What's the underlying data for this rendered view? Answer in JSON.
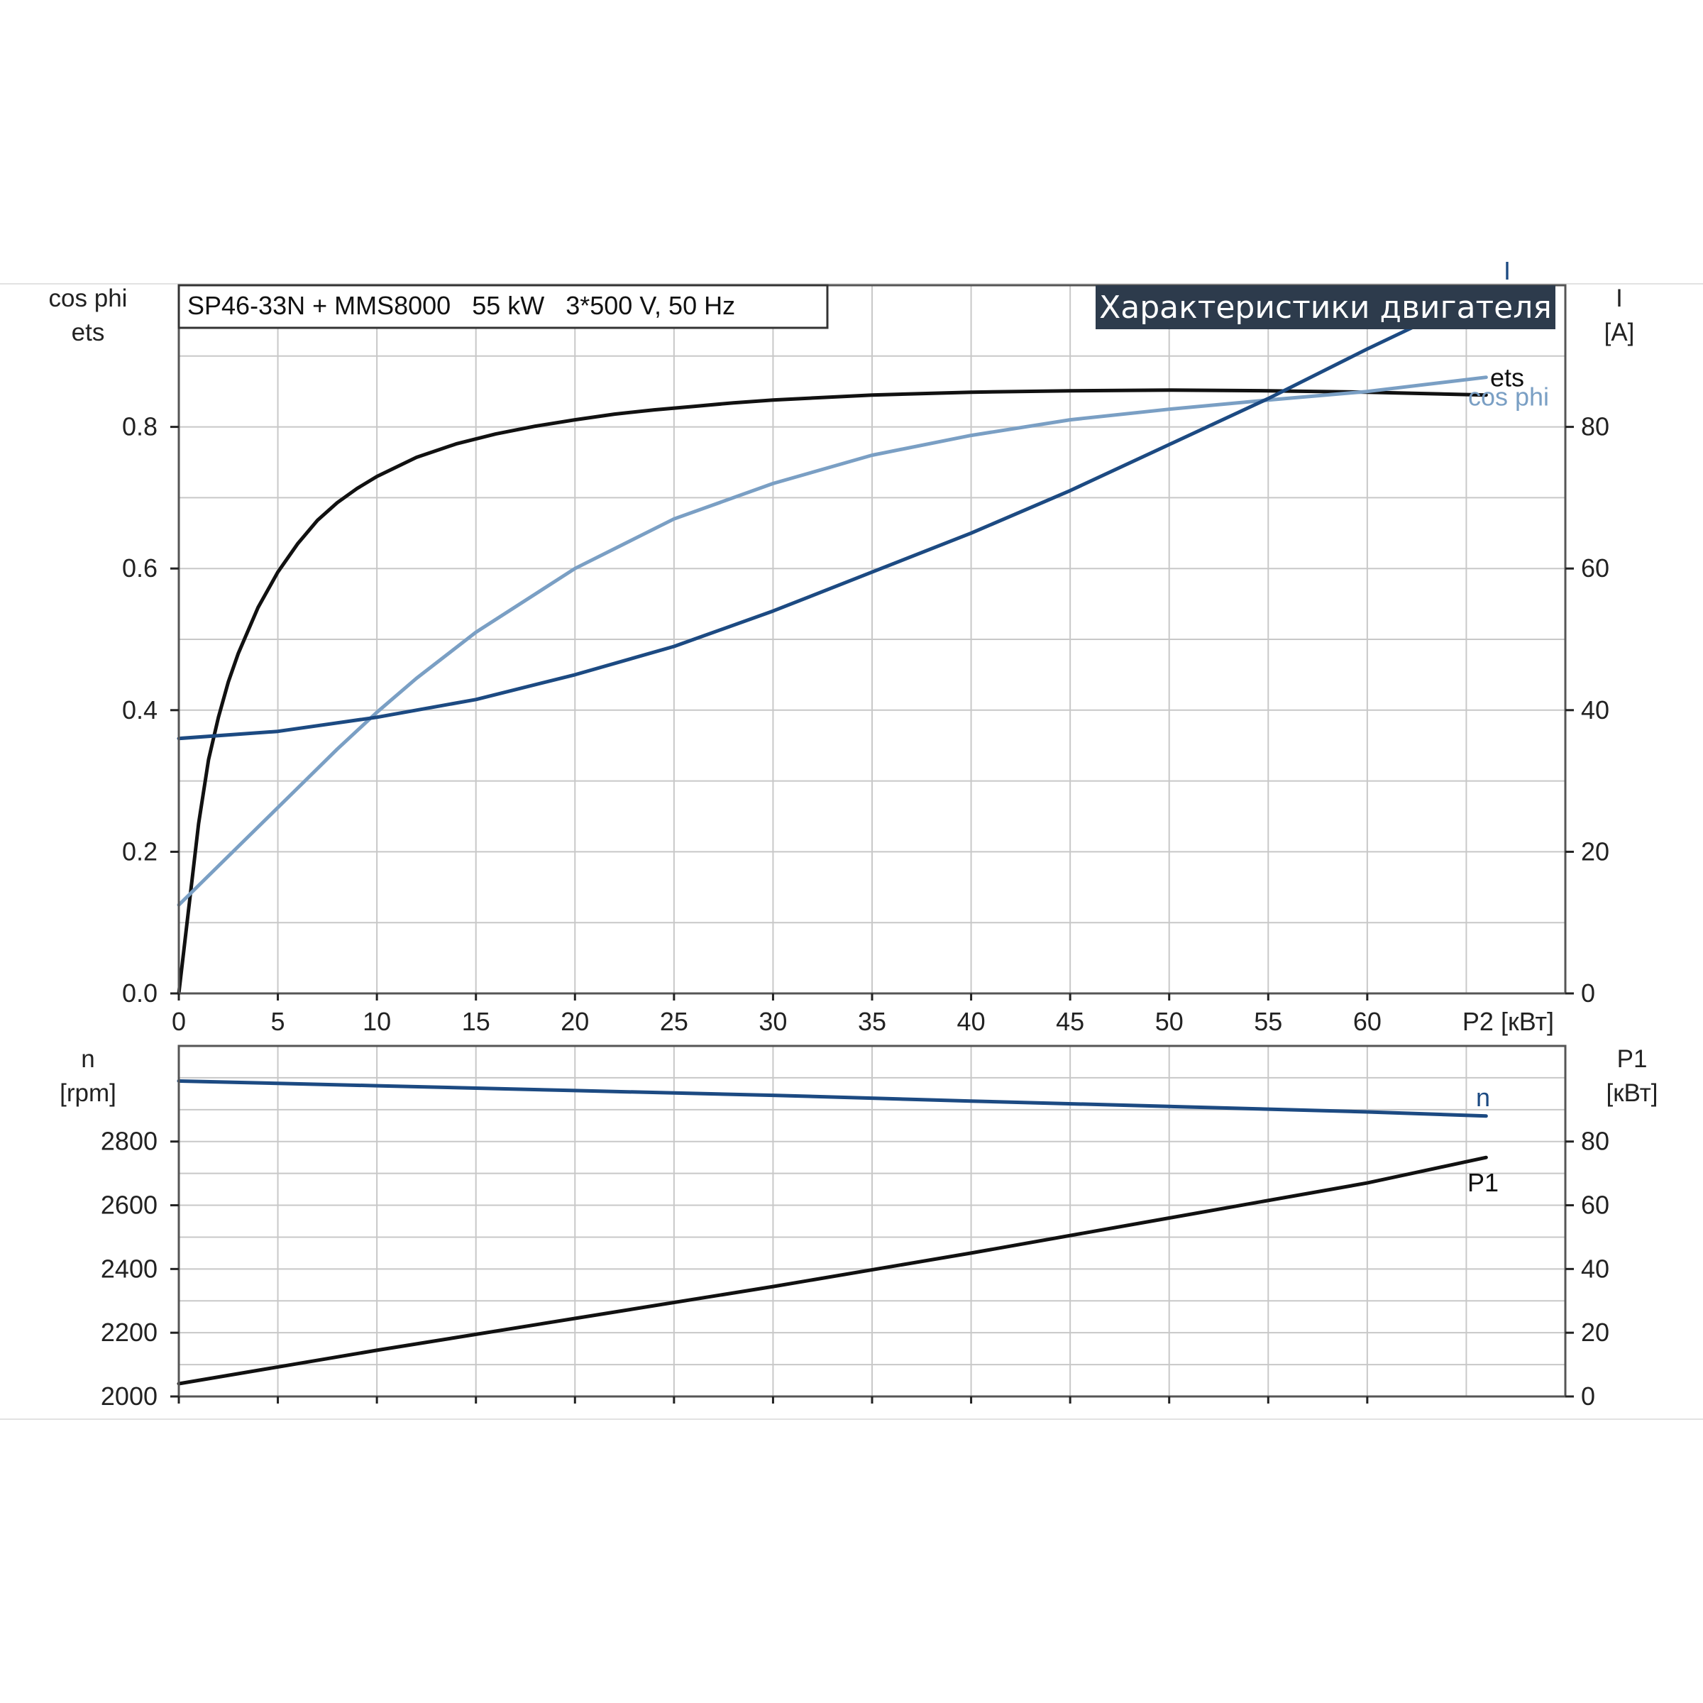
{
  "model_label": "SP46-33N + MMS8000   55 kW   3*500 V, 50 Hz",
  "banner_title": "Характеристики двигателя",
  "colors": {
    "ets": "#111111",
    "I": "#1c4a82",
    "cos_phi": "#7a9fc4",
    "n": "#1c4a82",
    "P1": "#111111",
    "banner_bg": "#2d3b4c"
  },
  "chart_data": [
    {
      "type": "line",
      "name": "upper-panel",
      "xlabel": "P2 [кВт]",
      "ylabel_left": [
        "cos phi",
        "ets"
      ],
      "ylabel_right": [
        "I",
        "[A]"
      ],
      "xlim": [
        0,
        70
      ],
      "ylim_left": [
        0,
        1.0
      ],
      "ylim_right": [
        0,
        100
      ],
      "x_ticks": [
        0,
        5,
        10,
        15,
        20,
        25,
        30,
        35,
        40,
        45,
        50,
        55,
        60
      ],
      "y_ticks_left": [
        0.0,
        0.2,
        0.4,
        0.6,
        0.8
      ],
      "y_tick_labels_left": [
        "0.0",
        "0.2",
        "0.4",
        "0.6",
        "0.8"
      ],
      "y_ticks_right": [
        0,
        20,
        40,
        60,
        80
      ],
      "grid": true,
      "series": [
        {
          "name": "ets",
          "axis": "left",
          "x": [
            0,
            0.5,
            1,
            1.5,
            2,
            2.5,
            3,
            4,
            5,
            6,
            7,
            8,
            9,
            10,
            12,
            14,
            16,
            18,
            20,
            22,
            24,
            26,
            28,
            30,
            35,
            40,
            45,
            50,
            55,
            60,
            66
          ],
          "y": [
            0.0,
            0.12,
            0.24,
            0.33,
            0.39,
            0.44,
            0.48,
            0.545,
            0.595,
            0.635,
            0.668,
            0.693,
            0.713,
            0.73,
            0.757,
            0.776,
            0.79,
            0.801,
            0.81,
            0.818,
            0.824,
            0.829,
            0.834,
            0.838,
            0.845,
            0.849,
            0.851,
            0.852,
            0.851,
            0.849,
            0.845
          ]
        },
        {
          "name": "cos phi",
          "axis": "left",
          "x": [
            0,
            2,
            4,
            6,
            8,
            10,
            12,
            15,
            20,
            25,
            30,
            35,
            40,
            45,
            50,
            55,
            60,
            66
          ],
          "y": [
            0.125,
            0.18,
            0.235,
            0.29,
            0.345,
            0.397,
            0.445,
            0.51,
            0.6,
            0.67,
            0.72,
            0.76,
            0.788,
            0.81,
            0.825,
            0.838,
            0.85,
            0.87
          ]
        },
        {
          "name": "I",
          "axis": "right",
          "x": [
            0,
            5,
            10,
            15,
            20,
            25,
            30,
            35,
            40,
            45,
            50,
            55,
            60,
            66
          ],
          "y": [
            36,
            37,
            39,
            41.5,
            45,
            49,
            54,
            59.5,
            65,
            71,
            77.5,
            84,
            91,
            99
          ]
        }
      ]
    },
    {
      "type": "line",
      "name": "lower-panel",
      "ylabel_left": [
        "n",
        "[rpm]"
      ],
      "ylabel_right": [
        "P1",
        "[кВт]"
      ],
      "xlim": [
        0,
        70
      ],
      "ylim_left": [
        2000,
        3100
      ],
      "ylim_right": [
        0,
        110
      ],
      "y_ticks_left": [
        2000,
        2200,
        2400,
        2600,
        2800
      ],
      "y_ticks_right": [
        0,
        20,
        40,
        60,
        80
      ],
      "grid": true,
      "series": [
        {
          "name": "n",
          "axis": "left",
          "x": [
            0,
            10,
            20,
            30,
            40,
            50,
            60,
            66
          ],
          "y": [
            2990,
            2975,
            2960,
            2945,
            2927,
            2910,
            2893,
            2880
          ]
        },
        {
          "name": "P1",
          "axis": "right",
          "x": [
            0,
            10,
            20,
            30,
            40,
            50,
            60,
            66
          ],
          "y": [
            4,
            14.5,
            24.5,
            34.5,
            45,
            56,
            67,
            75
          ]
        }
      ]
    }
  ]
}
